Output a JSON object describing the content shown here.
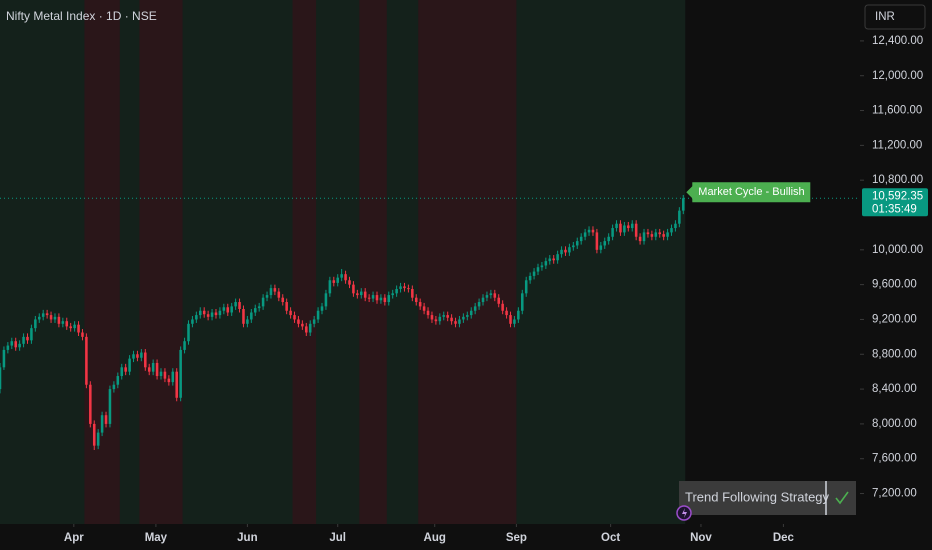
{
  "chart_data": {
    "type": "candlestick",
    "title": "Nifty Metal Index · 1D · NSE",
    "currency": "INR",
    "signal_label": "Market Cycle - Bullish",
    "strategy_label": "Trend Following Strategy",
    "last_price": {
      "value": 10592.35,
      "label": "10,592.35"
    },
    "countdown": "01:35:49",
    "up_color": "#089981",
    "down_color": "#f23645",
    "bullish_color": "#14211b",
    "bearish_color": "#2a1619",
    "xlim": [
      0,
      219
    ],
    "xticks": [
      {
        "value": 18.8,
        "label": "Apr"
      },
      {
        "value": 39.7,
        "label": "May"
      },
      {
        "value": 63,
        "label": "Jun"
      },
      {
        "value": 86,
        "label": "Jul"
      },
      {
        "value": 110.7,
        "label": "Aug"
      },
      {
        "value": 131.5,
        "label": "Sep"
      },
      {
        "value": 155.5,
        "label": "Oct"
      },
      {
        "value": 178.5,
        "label": "Nov"
      },
      {
        "value": 199.5,
        "label": "Dec"
      }
    ],
    "ylim": [
      6850,
      12870
    ],
    "yticks": [
      {
        "value": 12400,
        "label": "12,400.00"
      },
      {
        "value": 12000,
        "label": "12,000.00"
      },
      {
        "value": 11600,
        "label": "11,600.00"
      },
      {
        "value": 11200,
        "label": "11,200.00"
      },
      {
        "value": 10800,
        "label": "10,800.00"
      },
      {
        "value": 10000,
        "label": "10,000.00"
      },
      {
        "value": 9600,
        "label": "9,600.00"
      },
      {
        "value": 9200,
        "label": "9,200.00"
      },
      {
        "value": 8800,
        "label": "8,800.00"
      },
      {
        "value": 8400,
        "label": "8,400.00"
      },
      {
        "value": 8000,
        "label": "8,000.00"
      },
      {
        "value": 7600,
        "label": "7,600.00"
      },
      {
        "value": 7200,
        "label": "7,200.00"
      }
    ],
    "bullish_periods": [
      [
        -0.5,
        174.5
      ]
    ],
    "bearish_periods": [
      [
        21.5,
        30.5
      ],
      [
        35.5,
        46.5
      ],
      [
        74.5,
        80.5
      ],
      [
        91.5,
        98.5
      ],
      [
        106.5,
        131.5
      ]
    ],
    "ohlc": [
      [
        8400,
        8700,
        8350,
        8650
      ],
      [
        8650,
        8890,
        8620,
        8850
      ],
      [
        8850,
        8940,
        8810,
        8900
      ],
      [
        8900,
        8990,
        8860,
        8950
      ],
      [
        8950,
        8990,
        8840,
        8880
      ],
      [
        8880,
        8960,
        8840,
        8920
      ],
      [
        8920,
        9040,
        8880,
        9000
      ],
      [
        9000,
        9040,
        8920,
        8960
      ],
      [
        8960,
        9140,
        8920,
        9100
      ],
      [
        9100,
        9240,
        9060,
        9200
      ],
      [
        9200,
        9270,
        9160,
        9230
      ],
      [
        9230,
        9310,
        9190,
        9270
      ],
      [
        9270,
        9310,
        9210,
        9250
      ],
      [
        9250,
        9290,
        9160,
        9200
      ],
      [
        9200,
        9270,
        9160,
        9230
      ],
      [
        9230,
        9270,
        9110,
        9150
      ],
      [
        9150,
        9220,
        9110,
        9180
      ],
      [
        9180,
        9220,
        9080,
        9120
      ],
      [
        9120,
        9160,
        9060,
        9100
      ],
      [
        9100,
        9180,
        9060,
        9140
      ],
      [
        9140,
        9180,
        9010,
        9050
      ],
      [
        9050,
        9090,
        8960,
        9000
      ],
      [
        9000,
        9040,
        8410,
        8450
      ],
      [
        8450,
        8490,
        7960,
        8000
      ],
      [
        8000,
        8040,
        7700,
        7750
      ],
      [
        7750,
        7940,
        7710,
        7900
      ],
      [
        7900,
        8140,
        7860,
        8100
      ],
      [
        8100,
        8140,
        7960,
        8000
      ],
      [
        8000,
        8440,
        7960,
        8400
      ],
      [
        8400,
        8490,
        8360,
        8450
      ],
      [
        8450,
        8590,
        8410,
        8550
      ],
      [
        8550,
        8690,
        8510,
        8650
      ],
      [
        8650,
        8690,
        8560,
        8600
      ],
      [
        8600,
        8790,
        8560,
        8750
      ],
      [
        8750,
        8840,
        8710,
        8800
      ],
      [
        8800,
        8840,
        8720,
        8760
      ],
      [
        8760,
        8860,
        8720,
        8820
      ],
      [
        8820,
        8860,
        8610,
        8650
      ],
      [
        8650,
        8690,
        8560,
        8600
      ],
      [
        8600,
        8740,
        8560,
        8700
      ],
      [
        8700,
        8740,
        8510,
        8550
      ],
      [
        8550,
        8640,
        8510,
        8600
      ],
      [
        8600,
        8640,
        8480,
        8520
      ],
      [
        8520,
        8560,
        8440,
        8480
      ],
      [
        8480,
        8640,
        8440,
        8600
      ],
      [
        8600,
        8640,
        8260,
        8300
      ],
      [
        8300,
        8890,
        8260,
        8850
      ],
      [
        8850,
        8990,
        8810,
        8950
      ],
      [
        8950,
        9190,
        8910,
        9150
      ],
      [
        9150,
        9240,
        9110,
        9200
      ],
      [
        9200,
        9290,
        9160,
        9250
      ],
      [
        9250,
        9340,
        9210,
        9300
      ],
      [
        9300,
        9340,
        9220,
        9260
      ],
      [
        9260,
        9300,
        9190,
        9230
      ],
      [
        9230,
        9320,
        9190,
        9280
      ],
      [
        9280,
        9320,
        9210,
        9250
      ],
      [
        9250,
        9340,
        9210,
        9300
      ],
      [
        9300,
        9380,
        9260,
        9340
      ],
      [
        9340,
        9380,
        9240,
        9280
      ],
      [
        9280,
        9390,
        9240,
        9350
      ],
      [
        9350,
        9440,
        9310,
        9400
      ],
      [
        9400,
        9440,
        9280,
        9320
      ],
      [
        9320,
        9360,
        9110,
        9150
      ],
      [
        9150,
        9240,
        9110,
        9200
      ],
      [
        9200,
        9320,
        9160,
        9280
      ],
      [
        9280,
        9370,
        9240,
        9330
      ],
      [
        9330,
        9390,
        9290,
        9350
      ],
      [
        9350,
        9490,
        9310,
        9450
      ],
      [
        9450,
        9520,
        9410,
        9480
      ],
      [
        9480,
        9600,
        9440,
        9560
      ],
      [
        9560,
        9600,
        9480,
        9520
      ],
      [
        9520,
        9560,
        9410,
        9450
      ],
      [
        9450,
        9490,
        9360,
        9400
      ],
      [
        9400,
        9440,
        9260,
        9300
      ],
      [
        9300,
        9340,
        9210,
        9250
      ],
      [
        9250,
        9290,
        9160,
        9200
      ],
      [
        9200,
        9240,
        9110,
        9150
      ],
      [
        9150,
        9190,
        9080,
        9120
      ],
      [
        9120,
        9160,
        9010,
        9050
      ],
      [
        9050,
        9190,
        9010,
        9150
      ],
      [
        9150,
        9240,
        9110,
        9200
      ],
      [
        9200,
        9340,
        9160,
        9300
      ],
      [
        9300,
        9390,
        9260,
        9350
      ],
      [
        9350,
        9540,
        9310,
        9500
      ],
      [
        9500,
        9690,
        9460,
        9650
      ],
      [
        9650,
        9690,
        9580,
        9620
      ],
      [
        9620,
        9720,
        9580,
        9680
      ],
      [
        9680,
        9780,
        9640,
        9720
      ],
      [
        9720,
        9760,
        9610,
        9650
      ],
      [
        9650,
        9690,
        9560,
        9600
      ],
      [
        9600,
        9640,
        9460,
        9500
      ],
      [
        9500,
        9540,
        9440,
        9480
      ],
      [
        9480,
        9560,
        9440,
        9520
      ],
      [
        9520,
        9560,
        9410,
        9450
      ],
      [
        9450,
        9490,
        9400,
        9440
      ],
      [
        9440,
        9520,
        9400,
        9480
      ],
      [
        9480,
        9520,
        9380,
        9420
      ],
      [
        9420,
        9490,
        9380,
        9450
      ],
      [
        9450,
        9490,
        9360,
        9400
      ],
      [
        9400,
        9520,
        9360,
        9480
      ],
      [
        9480,
        9540,
        9440,
        9500
      ],
      [
        9500,
        9590,
        9460,
        9550
      ],
      [
        9550,
        9620,
        9510,
        9580
      ],
      [
        9580,
        9620,
        9520,
        9560
      ],
      [
        9560,
        9600,
        9510,
        9550
      ],
      [
        9550,
        9590,
        9410,
        9450
      ],
      [
        9450,
        9490,
        9360,
        9400
      ],
      [
        9400,
        9440,
        9310,
        9350
      ],
      [
        9350,
        9390,
        9260,
        9300
      ],
      [
        9300,
        9340,
        9210,
        9250
      ],
      [
        9250,
        9290,
        9160,
        9200
      ],
      [
        9200,
        9240,
        9140,
        9180
      ],
      [
        9180,
        9270,
        9140,
        9230
      ],
      [
        9230,
        9290,
        9190,
        9250
      ],
      [
        9250,
        9290,
        9180,
        9220
      ],
      [
        9220,
        9260,
        9140,
        9180
      ],
      [
        9180,
        9220,
        9110,
        9150
      ],
      [
        9150,
        9240,
        9110,
        9200
      ],
      [
        9200,
        9270,
        9160,
        9230
      ],
      [
        9230,
        9290,
        9190,
        9250
      ],
      [
        9250,
        9340,
        9210,
        9300
      ],
      [
        9300,
        9390,
        9260,
        9350
      ],
      [
        9350,
        9440,
        9310,
        9400
      ],
      [
        9400,
        9490,
        9360,
        9450
      ],
      [
        9450,
        9520,
        9410,
        9480
      ],
      [
        9480,
        9540,
        9440,
        9500
      ],
      [
        9500,
        9540,
        9410,
        9450
      ],
      [
        9450,
        9490,
        9340,
        9380
      ],
      [
        9380,
        9420,
        9260,
        9300
      ],
      [
        9300,
        9340,
        9210,
        9250
      ],
      [
        9250,
        9290,
        9110,
        9150
      ],
      [
        9150,
        9240,
        9110,
        9200
      ],
      [
        9200,
        9340,
        9160,
        9300
      ],
      [
        9300,
        9540,
        9260,
        9500
      ],
      [
        9500,
        9690,
        9460,
        9650
      ],
      [
        9650,
        9740,
        9610,
        9700
      ],
      [
        9700,
        9790,
        9660,
        9750
      ],
      [
        9750,
        9840,
        9710,
        9800
      ],
      [
        9800,
        9860,
        9760,
        9820
      ],
      [
        9820,
        9910,
        9780,
        9870
      ],
      [
        9870,
        9940,
        9830,
        9900
      ],
      [
        9900,
        9940,
        9840,
        9880
      ],
      [
        9880,
        9990,
        9840,
        9950
      ],
      [
        9950,
        10040,
        9910,
        10000
      ],
      [
        10000,
        10040,
        9930,
        9970
      ],
      [
        9970,
        10070,
        9930,
        10030
      ],
      [
        10030,
        10090,
        9990,
        10050
      ],
      [
        10050,
        10140,
        10010,
        10100
      ],
      [
        10100,
        10190,
        10060,
        10150
      ],
      [
        10150,
        10240,
        10110,
        10200
      ],
      [
        10200,
        10270,
        10160,
        10230
      ],
      [
        10230,
        10270,
        10160,
        10200
      ],
      [
        10200,
        10240,
        9960,
        10000
      ],
      [
        10000,
        10090,
        9960,
        10050
      ],
      [
        10050,
        10140,
        10010,
        10100
      ],
      [
        10100,
        10190,
        10060,
        10150
      ],
      [
        10150,
        10290,
        10110,
        10250
      ],
      [
        10250,
        10340,
        10210,
        10300
      ],
      [
        10300,
        10340,
        10160,
        10200
      ],
      [
        10200,
        10320,
        10160,
        10280
      ],
      [
        10280,
        10320,
        10210,
        10250
      ],
      [
        10250,
        10340,
        10210,
        10300
      ],
      [
        10300,
        10340,
        10110,
        10150
      ],
      [
        10150,
        10190,
        10060,
        10100
      ],
      [
        10100,
        10240,
        10060,
        10200
      ],
      [
        10200,
        10240,
        10140,
        10180
      ],
      [
        10180,
        10220,
        10110,
        10150
      ],
      [
        10150,
        10240,
        10110,
        10200
      ],
      [
        10200,
        10240,
        10140,
        10180
      ],
      [
        10180,
        10220,
        10110,
        10150
      ],
      [
        10150,
        10240,
        10110,
        10200
      ],
      [
        10200,
        10290,
        10160,
        10250
      ],
      [
        10250,
        10340,
        10210,
        10300
      ],
      [
        10300,
        10490,
        10260,
        10450
      ],
      [
        10450,
        10630,
        10410,
        10592.35
      ]
    ]
  }
}
